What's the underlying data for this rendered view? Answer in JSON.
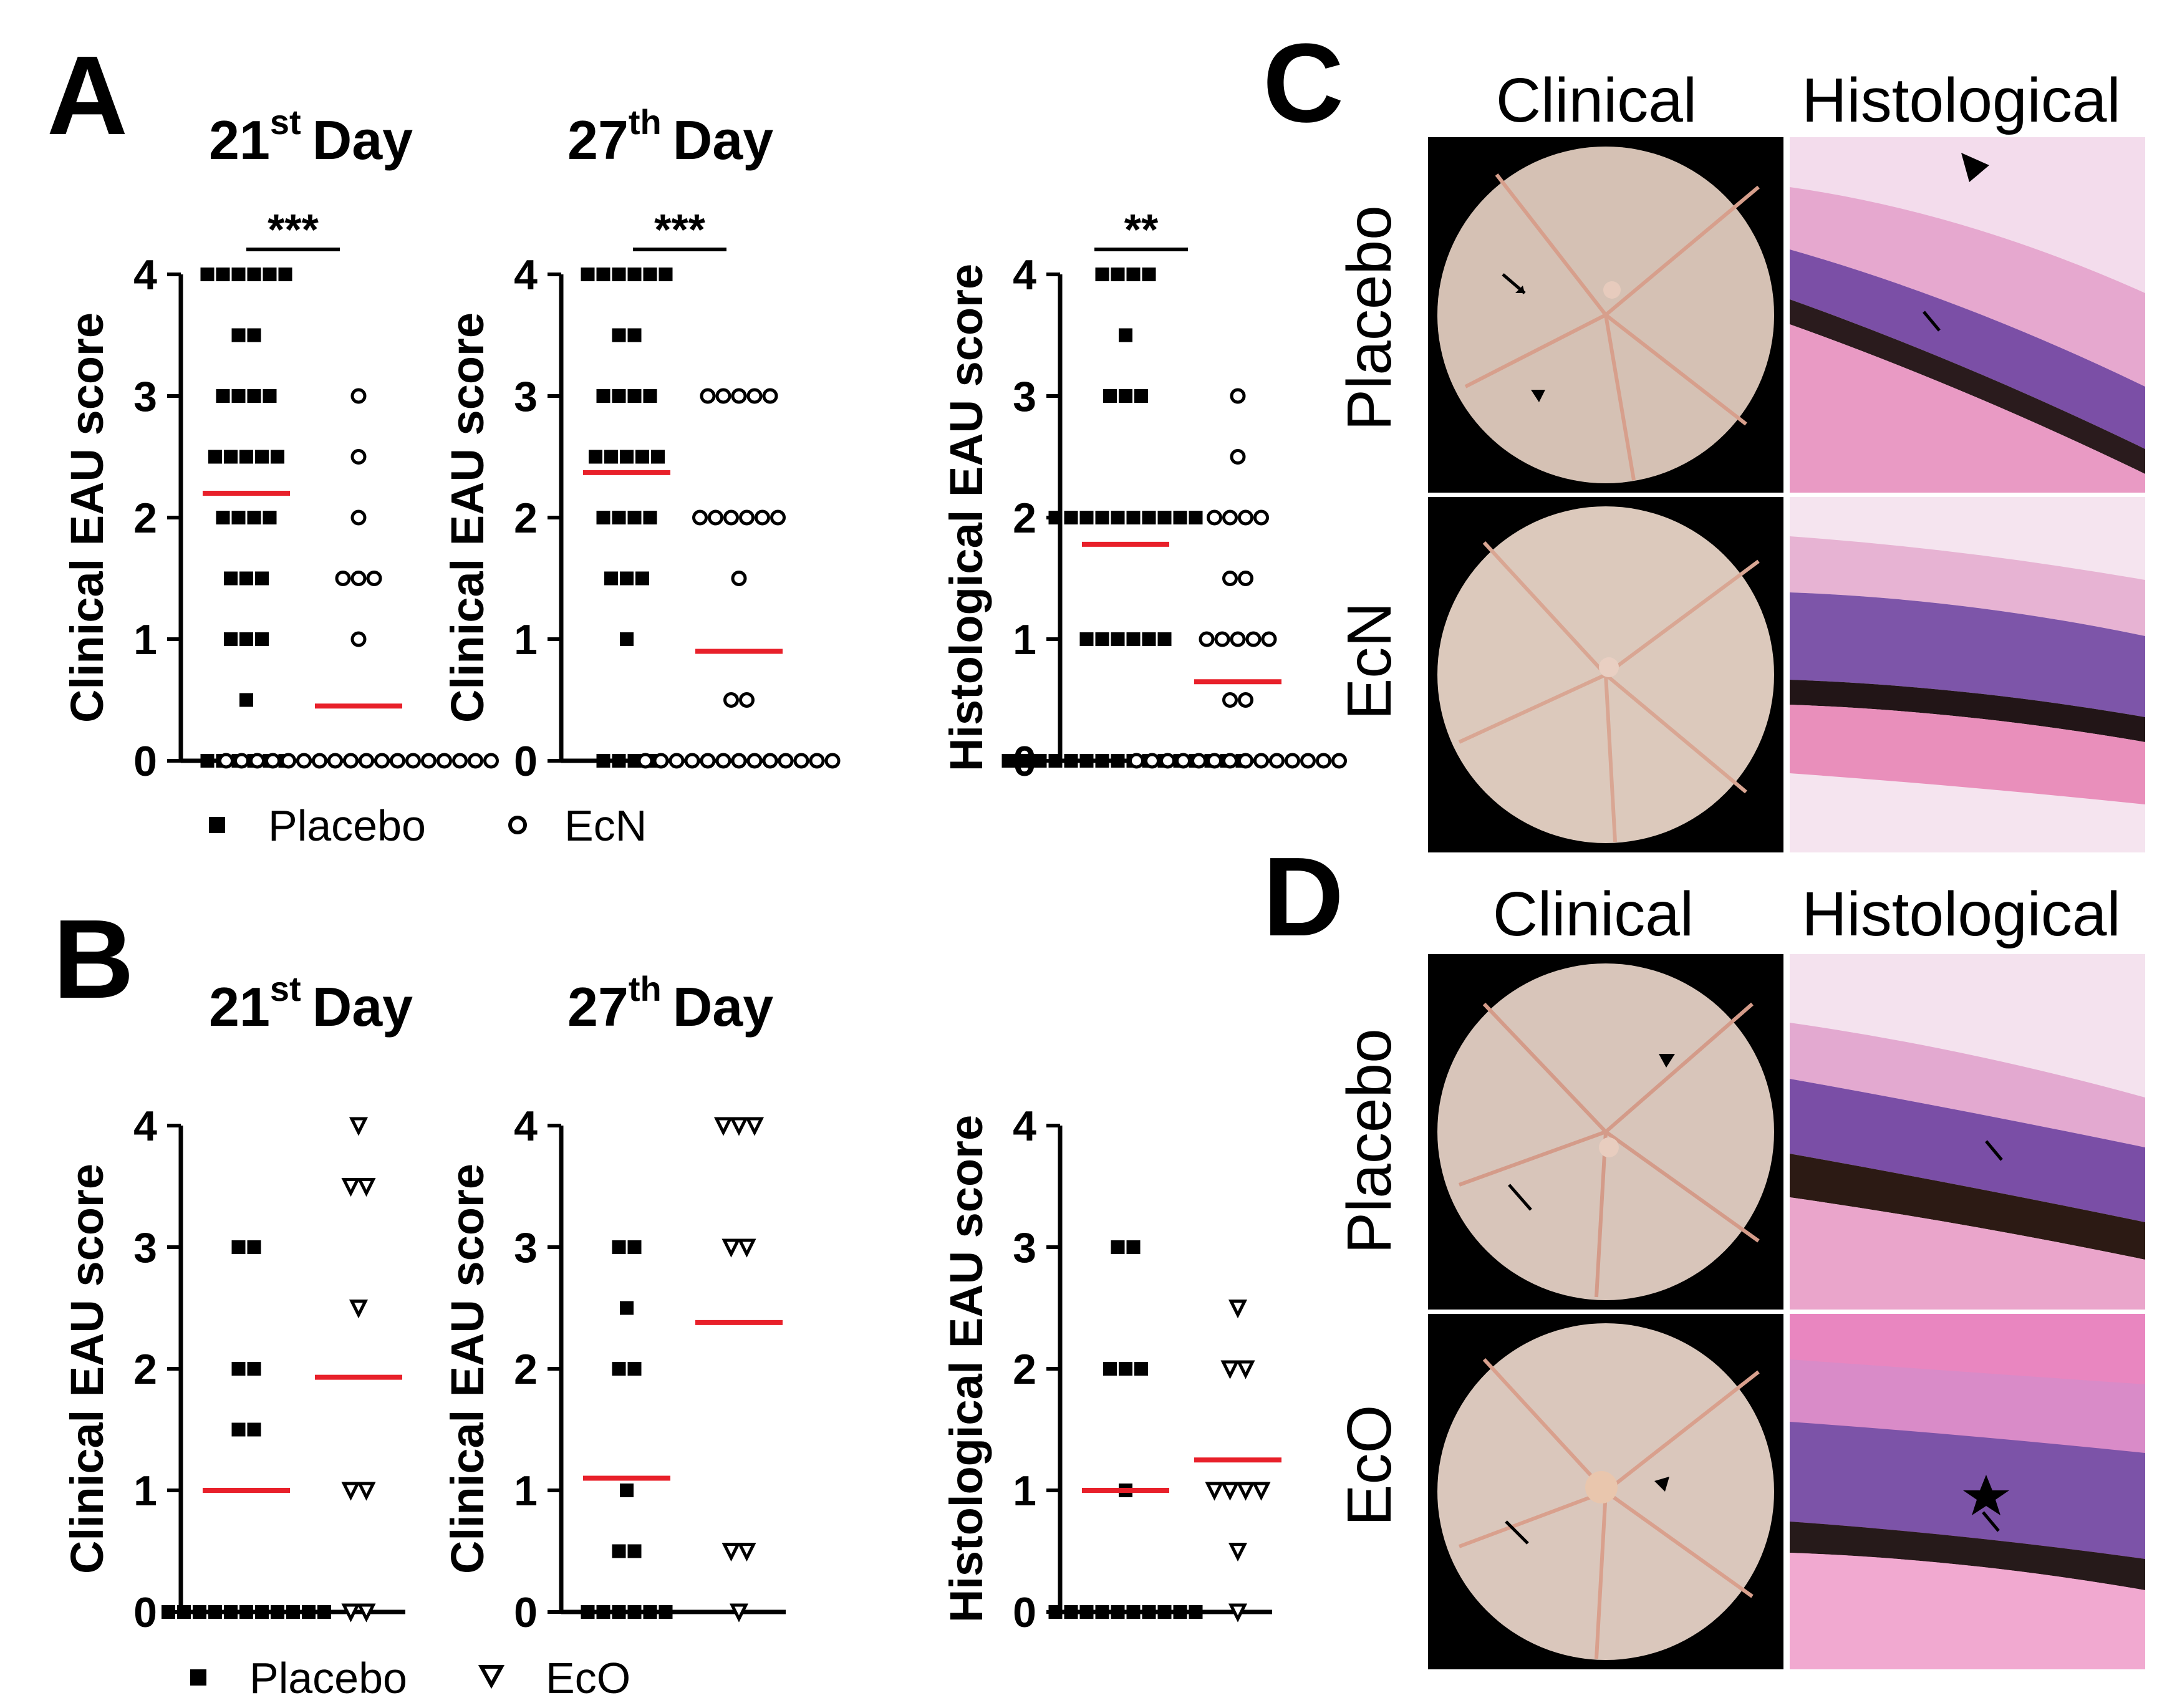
{
  "panel_labels": {
    "a": "A",
    "b": "B",
    "c": "C",
    "d": "D"
  },
  "headers": {
    "a": [
      {
        "num": "21",
        "sup": "st",
        "word": "Day"
      },
      {
        "num": "27",
        "sup": "th",
        "word": "Day"
      }
    ],
    "b": [
      {
        "num": "21",
        "sup": "st",
        "word": "Day"
      },
      {
        "num": "27",
        "sup": "th",
        "word": "Day"
      }
    ]
  },
  "legend": {
    "a": {
      "placebo": "Placebo",
      "treated": "EcN"
    },
    "b": {
      "placebo": "Placebo",
      "treated": "EcO"
    }
  },
  "images": {
    "col_clinical": "Clinical",
    "col_histological": "Histological",
    "c_rows": [
      "Placebo",
      "EcN"
    ],
    "d_rows": [
      "Placebo",
      "EcO"
    ]
  },
  "colors": {
    "mean_line": "#e8202a",
    "marker": "#000000",
    "fundus": "#d8c4b8",
    "histo_pink": "#e99ac4",
    "histo_purple": "#7a4fa8"
  },
  "chart_data": [
    {
      "id": "A1",
      "type": "scatter",
      "title": "21st Day",
      "ylabel": "Clinical EAU score",
      "ylim": [
        0,
        4
      ],
      "yticks": [
        0,
        1,
        2,
        3,
        4
      ],
      "groups": [
        "Placebo",
        "EcN"
      ],
      "significance": "***",
      "series": [
        {
          "name": "Placebo",
          "marker": "square",
          "mean": 2.2,
          "values": [
            4,
            4,
            4,
            4,
            4,
            4,
            3.5,
            3.5,
            3,
            3,
            3,
            3,
            2.5,
            2.5,
            2.5,
            2.5,
            2.5,
            2,
            2,
            2,
            2,
            1.5,
            1.5,
            1.5,
            1,
            1,
            1,
            0.5,
            0,
            0,
            0,
            0,
            0,
            0
          ]
        },
        {
          "name": "EcN",
          "marker": "circle",
          "mean": 0.45,
          "values": [
            3,
            2.5,
            2,
            1.5,
            1.5,
            1.5,
            1,
            0,
            0,
            0,
            0,
            0,
            0,
            0,
            0,
            0,
            0,
            0,
            0,
            0,
            0,
            0,
            0,
            0,
            0
          ]
        }
      ]
    },
    {
      "id": "A2",
      "type": "scatter",
      "title": "27th Day",
      "ylabel": "Clinical EAU score",
      "ylim": [
        0,
        4
      ],
      "yticks": [
        0,
        1,
        2,
        3,
        4
      ],
      "groups": [
        "Placebo",
        "EcN"
      ],
      "significance": "***",
      "series": [
        {
          "name": "Placebo",
          "marker": "square",
          "mean": 2.37,
          "values": [
            4,
            4,
            4,
            4,
            4,
            4,
            3.5,
            3.5,
            3,
            3,
            3,
            3,
            2.5,
            2.5,
            2.5,
            2.5,
            2.5,
            2,
            2,
            2,
            2,
            1.5,
            1.5,
            1.5,
            1,
            0,
            0,
            0,
            0
          ]
        },
        {
          "name": "EcN",
          "marker": "circle",
          "mean": 0.9,
          "values": [
            3,
            3,
            3,
            3,
            3,
            2,
            2,
            2,
            2,
            2,
            2,
            1.5,
            0.5,
            0.5,
            0,
            0,
            0,
            0,
            0,
            0,
            0,
            0,
            0,
            0,
            0,
            0,
            0
          ]
        }
      ]
    },
    {
      "id": "A3",
      "type": "scatter",
      "title": "",
      "ylabel": "Histological EAU score",
      "ylim": [
        0,
        4
      ],
      "yticks": [
        0,
        1,
        2,
        3,
        4
      ],
      "groups": [
        "Placebo",
        "EcN"
      ],
      "significance": "**",
      "series": [
        {
          "name": "Placebo",
          "marker": "square",
          "mean": 1.78,
          "values": [
            4,
            4,
            4,
            4,
            3.5,
            3,
            3,
            3,
            2,
            2,
            2,
            2,
            2,
            2,
            2,
            2,
            2,
            2,
            1,
            1,
            1,
            1,
            1,
            1,
            0,
            0,
            0,
            0,
            0,
            0,
            0,
            0,
            0,
            0,
            0,
            0,
            0,
            0,
            0,
            0
          ]
        },
        {
          "name": "EcN",
          "marker": "circle",
          "mean": 0.65,
          "values": [
            3,
            2.5,
            2,
            2,
            2,
            2,
            1.5,
            1.5,
            1,
            1,
            1,
            1,
            1,
            0.5,
            0.5,
            0,
            0,
            0,
            0,
            0,
            0,
            0,
            0,
            0,
            0,
            0,
            0,
            0,
            0
          ]
        }
      ]
    },
    {
      "id": "B1",
      "type": "scatter",
      "title": "21st Day",
      "ylabel": "Clinical EAU score",
      "ylim": [
        0,
        4
      ],
      "yticks": [
        0,
        1,
        2,
        3,
        4
      ],
      "groups": [
        "Placebo",
        "EcO"
      ],
      "significance": "",
      "series": [
        {
          "name": "Placebo",
          "marker": "square",
          "mean": 1.0,
          "values": [
            3,
            3,
            2,
            2,
            1.5,
            1.5,
            0,
            0,
            0,
            0,
            0,
            0,
            0,
            0,
            0,
            0,
            0
          ]
        },
        {
          "name": "EcO",
          "marker": "triangle",
          "mean": 1.93,
          "values": [
            4,
            3.5,
            3.5,
            2.5,
            1,
            1,
            0,
            0
          ]
        }
      ]
    },
    {
      "id": "B2",
      "type": "scatter",
      "title": "27th Day",
      "ylabel": "Clinical EAU score",
      "ylim": [
        0,
        4
      ],
      "yticks": [
        0,
        1,
        2,
        3,
        4
      ],
      "groups": [
        "Placebo",
        "EcO"
      ],
      "significance": "",
      "series": [
        {
          "name": "Placebo",
          "marker": "square",
          "mean": 1.1,
          "values": [
            3,
            3,
            2.5,
            2,
            2,
            1,
            0.5,
            0.5,
            0,
            0,
            0,
            0,
            0,
            0
          ]
        },
        {
          "name": "EcO",
          "marker": "triangle",
          "mean": 2.38,
          "values": [
            4,
            4,
            4,
            3,
            3,
            0.5,
            0.5,
            0
          ]
        }
      ]
    },
    {
      "id": "B3",
      "type": "scatter",
      "title": "",
      "ylabel": "Histological EAU score",
      "ylim": [
        0,
        4
      ],
      "yticks": [
        0,
        1,
        2,
        3,
        4
      ],
      "groups": [
        "Placebo",
        "EcO"
      ],
      "significance": "",
      "series": [
        {
          "name": "Placebo",
          "marker": "square",
          "mean": 1.0,
          "values": [
            3,
            3,
            2,
            2,
            2,
            1,
            0,
            0,
            0,
            0,
            0,
            0,
            0,
            0,
            0,
            0
          ]
        },
        {
          "name": "EcO",
          "marker": "triangle",
          "mean": 1.25,
          "values": [
            2.5,
            2,
            2,
            1,
            1,
            1,
            1,
            0.5,
            0
          ]
        }
      ]
    }
  ]
}
